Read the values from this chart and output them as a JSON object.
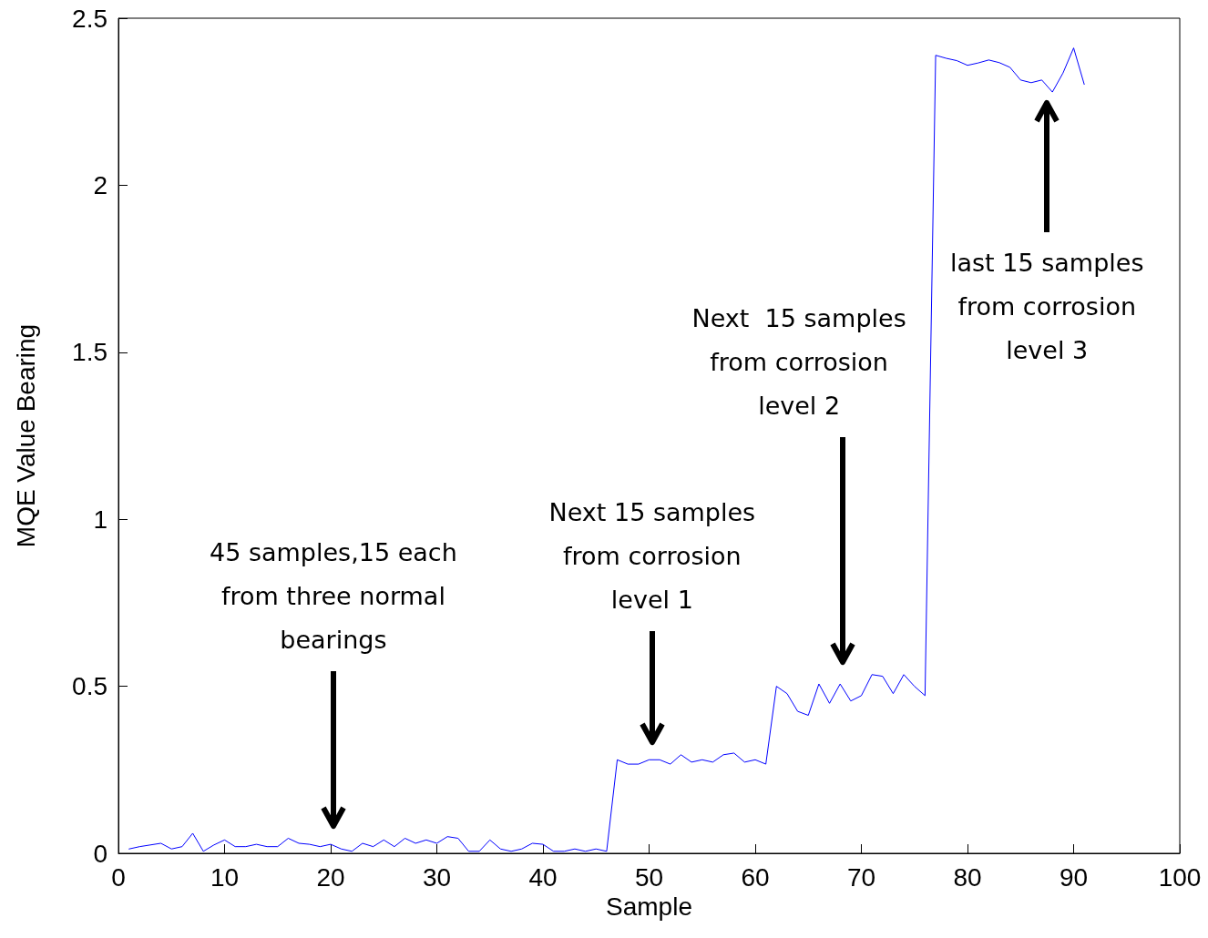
{
  "chart_data": {
    "type": "line",
    "xlabel": "Sample",
    "ylabel": "MQE Value Bearing",
    "x": [
      1,
      2,
      3,
      4,
      5,
      6,
      7,
      8,
      9,
      10,
      11,
      12,
      13,
      14,
      15,
      16,
      17,
      18,
      19,
      20,
      21,
      22,
      23,
      24,
      25,
      26,
      27,
      28,
      29,
      30,
      31,
      32,
      33,
      34,
      35,
      36,
      37,
      38,
      39,
      40,
      41,
      42,
      43,
      44,
      45,
      46,
      47,
      48,
      49,
      50,
      51,
      52,
      53,
      54,
      55,
      56,
      57,
      58,
      59,
      60,
      61,
      62,
      63,
      64,
      65,
      66,
      67,
      68,
      69,
      70,
      71,
      72,
      73,
      74,
      75,
      76,
      77,
      78,
      79,
      80,
      81,
      82,
      83,
      84,
      85,
      86,
      87,
      88,
      89,
      90,
      91
    ],
    "series": [
      {
        "color": "#0000ff",
        "values": [
          0.013,
          0.02,
          0.025,
          0.03,
          0.013,
          0.02,
          0.06,
          0.006,
          0.025,
          0.04,
          0.02,
          0.02,
          0.027,
          0.02,
          0.02,
          0.045,
          0.03,
          0.027,
          0.02,
          0.027,
          0.013,
          0.006,
          0.03,
          0.02,
          0.04,
          0.02,
          0.045,
          0.03,
          0.04,
          0.03,
          0.05,
          0.045,
          0.006,
          0.006,
          0.04,
          0.013,
          0.006,
          0.013,
          0.03,
          0.027,
          0.006,
          0.006,
          0.013,
          0.006,
          0.013,
          0.006,
          0.28,
          0.267,
          0.267,
          0.28,
          0.28,
          0.267,
          0.295,
          0.273,
          0.28,
          0.273,
          0.295,
          0.3,
          0.273,
          0.28,
          0.267,
          0.5,
          0.478,
          0.425,
          0.413,
          0.507,
          0.449,
          0.507,
          0.456,
          0.472,
          0.535,
          0.53,
          0.478,
          0.535,
          0.5,
          0.472,
          2.389,
          2.38,
          2.373,
          2.359,
          2.366,
          2.375,
          2.367,
          2.353,
          2.315,
          2.307,
          2.315,
          2.279,
          2.336,
          2.411,
          2.302
        ]
      }
    ],
    "xlim": [
      0,
      100
    ],
    "xticks": [
      0,
      10,
      20,
      30,
      40,
      50,
      60,
      70,
      80,
      90,
      100
    ],
    "ylim": [
      0,
      2.5
    ],
    "yticks": [
      0,
      0.5,
      1,
      1.5,
      2,
      2.5
    ],
    "grid": false,
    "marker": "none",
    "line_style": "solid",
    "annotations": [
      "45 samples,15 each\nfrom three normal\nbearings",
      "Next 15 samples\nfrom corrosion\nlevel 1",
      "Next  15 samples\nfrom corrosion\nlevel 2",
      "last 15 samples\nfrom corrosion\nlevel 3"
    ]
  }
}
